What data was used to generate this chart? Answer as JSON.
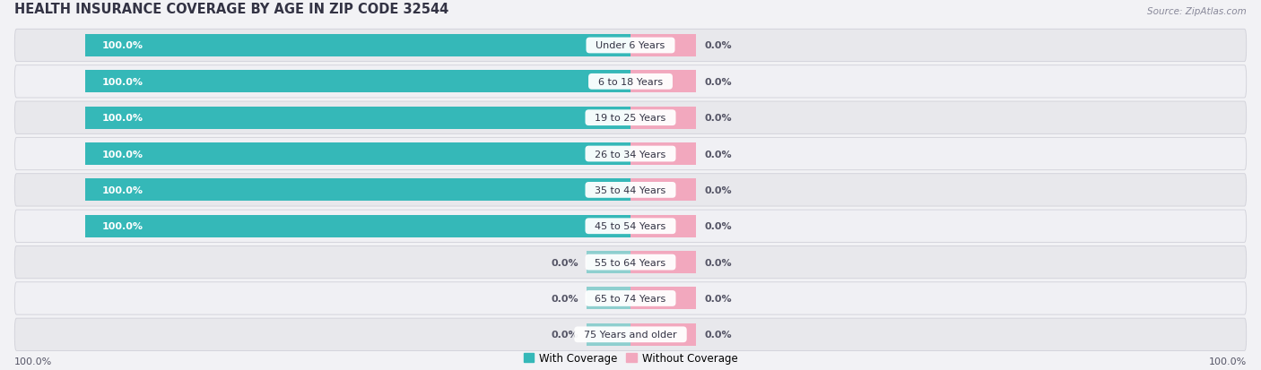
{
  "title": "HEALTH INSURANCE COVERAGE BY AGE IN ZIP CODE 32544",
  "source": "Source: ZipAtlas.com",
  "categories": [
    "Under 6 Years",
    "6 to 18 Years",
    "19 to 25 Years",
    "26 to 34 Years",
    "35 to 44 Years",
    "45 to 54 Years",
    "55 to 64 Years",
    "65 to 74 Years",
    "75 Years and older"
  ],
  "with_coverage": [
    100.0,
    100.0,
    100.0,
    100.0,
    100.0,
    100.0,
    0.0,
    0.0,
    0.0
  ],
  "without_coverage": [
    0.0,
    0.0,
    0.0,
    0.0,
    0.0,
    0.0,
    0.0,
    0.0,
    0.0
  ],
  "color_with": "#35b8b8",
  "color_with_stub": "#8ecfcf",
  "color_without": "#f2a8be",
  "row_bg_dark": "#e8e8ec",
  "row_bg_light": "#f0f0f4",
  "title_fontsize": 10.5,
  "label_fontsize": 8.0,
  "tick_fontsize": 8.0,
  "legend_fontsize": 8.5,
  "fig_width": 14.06,
  "fig_height": 4.14,
  "max_val": 100.0,
  "stub_size": 8.0,
  "pink_stub_size": 12.0
}
